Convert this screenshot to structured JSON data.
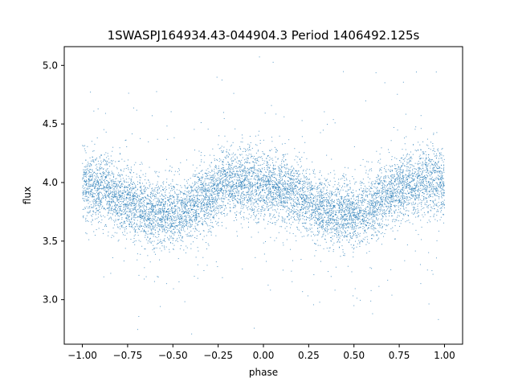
{
  "chart_data": {
    "type": "scatter",
    "title": "1SWASPJ164934.43-044904.3 Period 1406492.125s",
    "xlabel": "phase",
    "ylabel": "flux",
    "xlim": [
      -1.1,
      1.1
    ],
    "ylim": [
      2.62,
      5.16
    ],
    "xticks": [
      -1.0,
      -0.75,
      -0.5,
      -0.25,
      0.0,
      0.25,
      0.5,
      0.75,
      1.0
    ],
    "xtick_labels": [
      "−1.00",
      "−0.75",
      "−0.50",
      "−0.25",
      "0.00",
      "0.25",
      "0.50",
      "0.75",
      "1.00"
    ],
    "yticks": [
      3.0,
      3.5,
      4.0,
      4.5,
      5.0
    ],
    "ytick_labels": [
      "3.0",
      "3.5",
      "4.0",
      "4.5",
      "5.0"
    ],
    "grid": false,
    "marker_color": "#1f77b4",
    "phase_profile": {
      "x": [
        -1.0,
        -0.9,
        -0.8,
        -0.7,
        -0.6,
        -0.5,
        -0.4,
        -0.3,
        -0.2,
        -0.1,
        0.0,
        0.1,
        0.2,
        0.3,
        0.4,
        0.5,
        0.6,
        0.7,
        0.8,
        0.9,
        1.0
      ],
      "y": [
        4.0,
        3.95,
        3.87,
        3.78,
        3.74,
        3.72,
        3.78,
        3.9,
        4.0,
        4.0,
        3.98,
        3.95,
        3.87,
        3.78,
        3.74,
        3.72,
        3.78,
        3.9,
        4.0,
        4.0,
        3.98
      ]
    },
    "scatter_sd": 0.14,
    "approx_point_count": 9000
  }
}
